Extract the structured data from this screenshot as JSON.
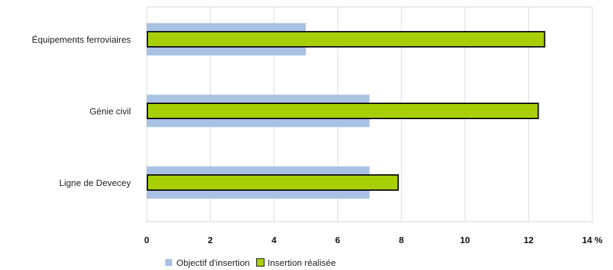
{
  "chart_data": {
    "type": "bar",
    "orientation": "horizontal",
    "categories": [
      "Équipements ferroviaires",
      "Génie civil",
      "Ligne de Devecey"
    ],
    "series": [
      {
        "name": "Objectif d'insertion",
        "values": [
          5,
          7,
          7
        ],
        "color": "#a9c1e3"
      },
      {
        "name": "Insertion réalisée",
        "values": [
          12.5,
          12.3,
          7.9
        ],
        "color": "#a8cf06"
      }
    ],
    "xlim": [
      0,
      14
    ],
    "ticks": [
      "0",
      "2",
      "4",
      "6",
      "8",
      "10",
      "12",
      "14 %"
    ],
    "tick_values": [
      0,
      2,
      4,
      6,
      8,
      10,
      12,
      14
    ],
    "grid": true,
    "legend_position": "bottom"
  }
}
